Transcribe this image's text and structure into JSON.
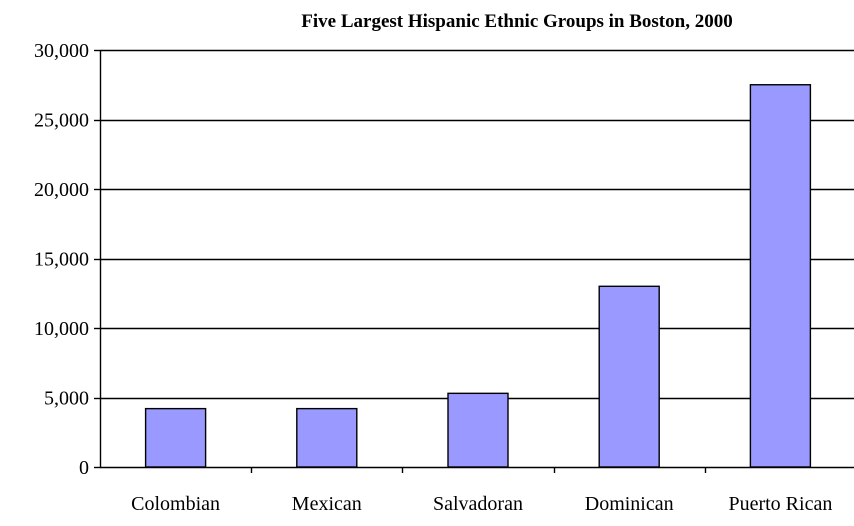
{
  "chart_data": {
    "type": "bar",
    "title": "Five Largest Hispanic Ethnic Groups in Boston, 2000",
    "xlabel": "",
    "ylabel": "",
    "categories": [
      "Colombian",
      "Mexican",
      "Salvadoran",
      "Dominican",
      "Puerto Rican"
    ],
    "values": [
      4200,
      4200,
      5300,
      13000,
      27500
    ],
    "ylim": [
      0,
      30000
    ],
    "yticks": [
      0,
      5000,
      10000,
      15000,
      20000,
      25000,
      30000
    ],
    "ytick_labels": [
      "0",
      "5,000",
      "10,000",
      "15,000",
      "20,000",
      "25,000",
      "30,000"
    ],
    "grid": true,
    "legend": "none",
    "colors": {
      "bar_fill": "#9999ff",
      "bar_stroke": "#000000",
      "grid": "#000000",
      "axis": "#000000"
    }
  }
}
